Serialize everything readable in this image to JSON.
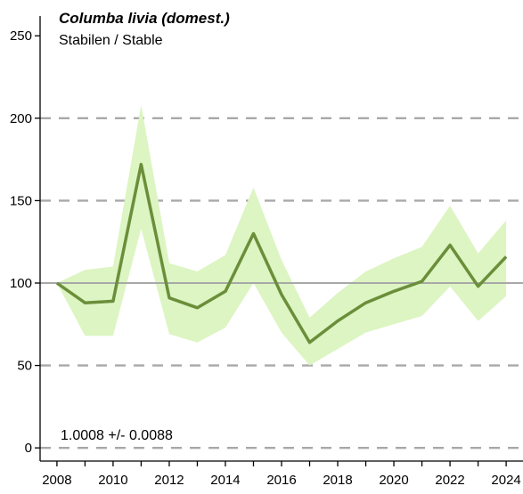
{
  "chart_data": {
    "type": "line",
    "title": "Columba livia (domest.)",
    "subtitle": "Stabilen / Stable",
    "annotation": "1.0008 +/- 0.0088",
    "xlabel": "",
    "ylabel": "",
    "x": [
      2008,
      2009,
      2010,
      2011,
      2012,
      2013,
      2014,
      2015,
      2016,
      2017,
      2018,
      2019,
      2020,
      2021,
      2022,
      2023,
      2024
    ],
    "series": [
      {
        "values": [
          100,
          88,
          89,
          172,
          91,
          85,
          95,
          130,
          93,
          64,
          77,
          88,
          95,
          101,
          123,
          98,
          116
        ],
        "lower": [
          100,
          68,
          68,
          133,
          69,
          64,
          73,
          100,
          70,
          50,
          60,
          70,
          75,
          80,
          98,
          77,
          92
        ],
        "upper": [
          100,
          108,
          110,
          208,
          112,
          107,
          117,
          158,
          114,
          79,
          94,
          107,
          115,
          122,
          147,
          118,
          138
        ]
      }
    ],
    "xticks": [
      "2008",
      "2010",
      "2012",
      "2014",
      "2016",
      "2018",
      "2020",
      "2022",
      "2024"
    ],
    "yticks": [
      "0",
      "50",
      "100",
      "150",
      "200",
      "250"
    ],
    "xlim": [
      2007.4,
      2024.6
    ],
    "ylim": [
      -8,
      262
    ],
    "reference_line": 100,
    "grid": "dashed horizontal at 0, 50, 150, 200",
    "colors": {
      "line": "#6b8e3a",
      "band": "#dcf5c2",
      "reference": "#a8a8a8",
      "grid": "#a8a8a8",
      "axis": "#000000"
    }
  }
}
